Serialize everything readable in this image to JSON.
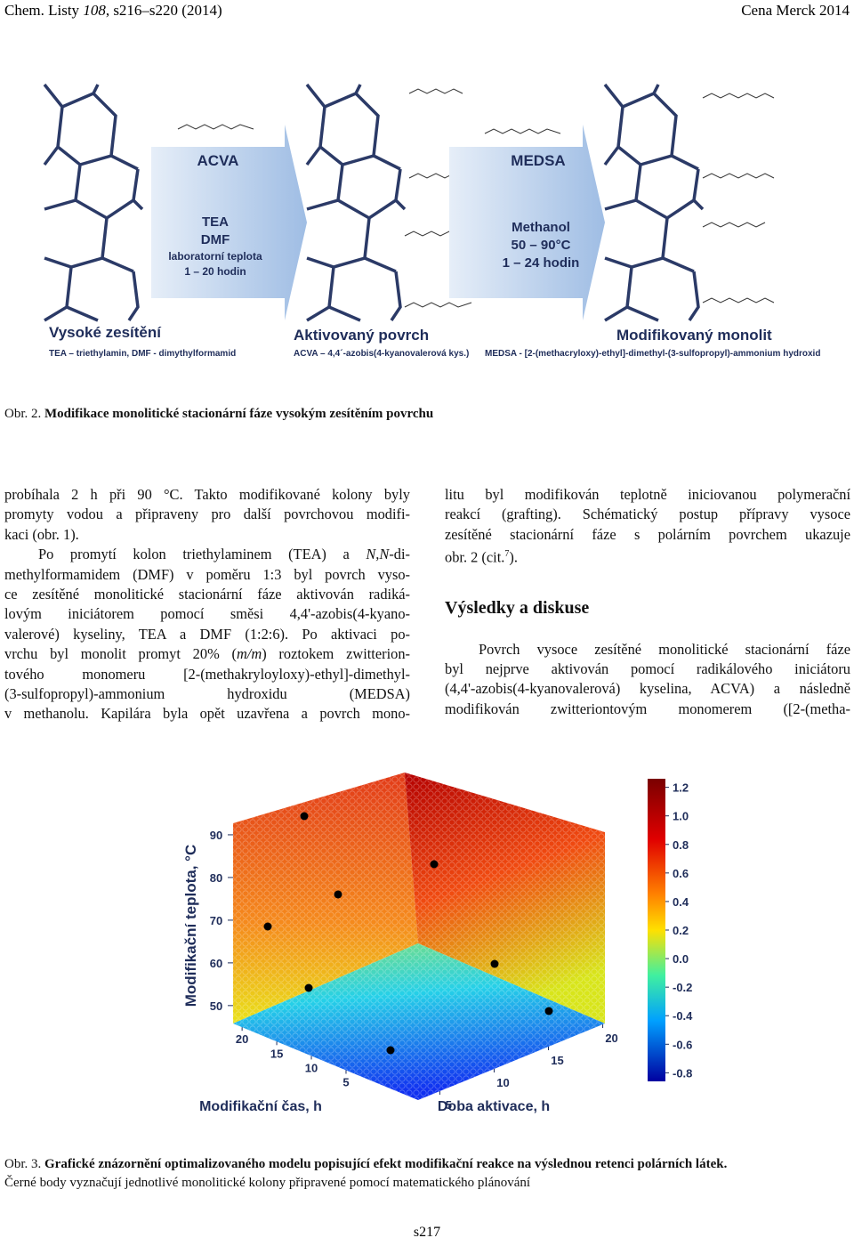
{
  "header": {
    "left": [
      "Chem. Listy ",
      "108",
      ", s216–s220 (2014)"
    ],
    "right": "Cena Merck 2014"
  },
  "figure2": {
    "reagent_1": "ACVA",
    "conditions_1": [
      "TEA",
      "DMF",
      "laboratorní teplota",
      "1 – 20 hodin"
    ],
    "reagent_2": "MEDSA",
    "conditions_2": [
      "Methanol",
      "50 – 90°C",
      "1 – 24 hodin"
    ],
    "stages": [
      "Vysoké zesítění",
      "Aktivovaný povrch",
      "Modifikovaný monolit"
    ],
    "notes": [
      "TEA – triethylamin, DMF - dimythylformamid",
      "ACVA – 4,4´-azobis(4-kyanovalerová kys.)",
      "MEDSA - [2-(methacryloxy)-ethyl]-dimethyl-(3-sulfopropyl)-ammonium hydroxid"
    ]
  },
  "caption2": {
    "label": "Obr. 2. ",
    "text": "Modifikace monolitické stacionární fáze vysokým zesítěním povrchu"
  },
  "left_column": {
    "lines": [
      "probíhala 2 h při 90 °C. Takto modifikované kolony byly",
      "promyty vodou a připraveny pro další povrchovou modifi-",
      "kaci (obr. 1).",
      [
        "Po promytí kolon triethylaminem (TEA) a ",
        "N,N",
        "-di-"
      ],
      "methylformamidem (DMF) v poměru 1:3 byl povrch vyso-",
      "ce zesítěné monolitické stacionární fáze aktivován radiká-",
      "lovým iniciátorem pomocí směsi 4,4'-azobis(4-kyano-",
      "valerové) kyseliny, TEA a DMF (1:2:6). Po aktivaci po-",
      [
        "vrchu byl monolit promyt 20% (",
        "m/m",
        ") roztokem zwitterion-"
      ],
      "tového monomeru [2-(methakryloyloxy)-ethyl]-dimethyl-",
      "(3-sulfopropyl)-ammonium hydroxidu (MEDSA)",
      "v methanolu. Kapilára byla opět uzavřena a povrch mono-"
    ]
  },
  "right_column": {
    "lines": [
      "litu byl modifikován teplotně iniciovanou polymerační",
      "reakcí (grafting). Schématický postup přípravy vysoce",
      "zesítěné stacionární fáze s polárním povrchem ukazuje",
      [
        "obr. 2 (cit.",
        "7",
        ")."
      ]
    ],
    "heading": "Výsledky a diskuse",
    "paragraph": [
      "Povrch vysoce zesítěné monolitické stacionární fáze",
      "byl nejprve aktivován pomocí radikálového iniciátoru",
      "(4,4'-azobis(4-kyanovalerová) kyselina, ACVA) a následně",
      "modifikován zwitteriontovým monomerem ([2-(metha-"
    ]
  },
  "figure3": {
    "z_axis": {
      "title": "Modifikační teplota, °C",
      "ticks": [
        50,
        60,
        70,
        80,
        90
      ],
      "lim": [
        45.8,
        92.7
      ]
    },
    "x_axis": {
      "title": "Modifikační čas, h",
      "ticks": [
        5,
        10,
        15,
        20
      ],
      "lim": [
        21.3,
        -5.4
      ]
    },
    "y_axis": {
      "title": "Doba aktivace, h",
      "ticks": [
        5,
        10,
        15,
        20
      ],
      "lim": [
        3,
        20.2
      ]
    },
    "colorbar": {
      "ticks": [
        1.2,
        {
          "value": 1,
          "label": "1.0"
        },
        0.8,
        0.6,
        0.4,
        0.2,
        {
          "value": 0,
          "label": "0.0"
        },
        -0.2,
        -0.4,
        -0.6,
        -0.8
      ],
      "lim": [
        -0.86,
        1.26
      ]
    }
  },
  "caption3": {
    "label": "Obr. 3. ",
    "bold": "Grafické znázornění optimalizovaného modelu popisující efekt modifikační reakce na výslednou retenci polárních látek.",
    "text": "Černé body vyznačují jednotlivé monolitické kolony připravené pomocí matematického plánování"
  },
  "page_number": "s217"
}
